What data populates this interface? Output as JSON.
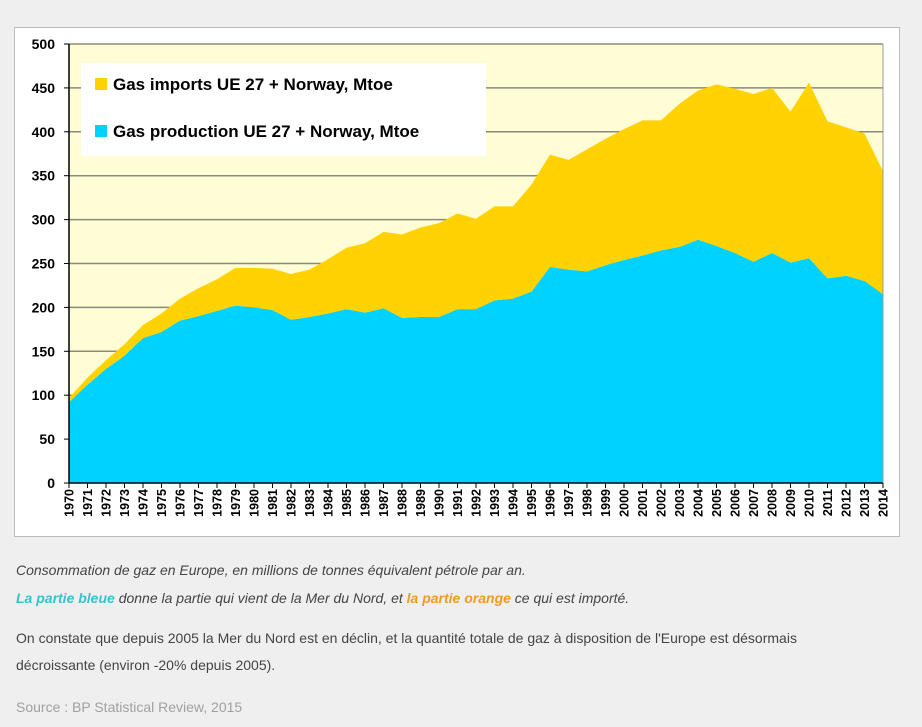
{
  "chart_data": {
    "type": "area",
    "stacked": true,
    "title": "",
    "xlabel": "",
    "ylabel": "",
    "ylim": [
      0,
      500
    ],
    "yticks": [
      0,
      50,
      100,
      150,
      200,
      250,
      300,
      350,
      400,
      450,
      500
    ],
    "grid": true,
    "legend_position": "top-left",
    "x": [
      1970,
      1971,
      1972,
      1973,
      1974,
      1975,
      1976,
      1977,
      1978,
      1979,
      1980,
      1981,
      1982,
      1983,
      1984,
      1985,
      1986,
      1987,
      1988,
      1989,
      1990,
      1991,
      1992,
      1993,
      1994,
      1995,
      1996,
      1997,
      1998,
      1999,
      2000,
      2001,
      2002,
      2003,
      2004,
      2005,
      2006,
      2007,
      2008,
      2009,
      2010,
      2011,
      2012,
      2013,
      2014
    ],
    "series": [
      {
        "name": "Gas production UE 27 + Norway, Mtoe",
        "color": "#00d2ff",
        "values": [
          92,
          112,
          130,
          145,
          165,
          172,
          185,
          190,
          196,
          202,
          200,
          197,
          186,
          189,
          193,
          198,
          194,
          199,
          188,
          189,
          189,
          198,
          198,
          208,
          210,
          218,
          246,
          243,
          241,
          248,
          254,
          259,
          265,
          269,
          277,
          270,
          262,
          252,
          262,
          251,
          256,
          233,
          236,
          230,
          215
        ]
      },
      {
        "name": "Gas imports UE 27 + Norway, Mtoe",
        "color": "#ffd200",
        "values": [
          5,
          8,
          10,
          13,
          15,
          21,
          25,
          32,
          36,
          43,
          45,
          47,
          52,
          54,
          62,
          70,
          79,
          87,
          95,
          102,
          107,
          109,
          103,
          107,
          105,
          122,
          128,
          125,
          139,
          144,
          149,
          154,
          148,
          163,
          170,
          184,
          187,
          191,
          188,
          172,
          200,
          179,
          169,
          168,
          140
        ]
      }
    ]
  },
  "caption": {
    "line1": "Consommation de gaz en Europe, en millions de tonnes équivalent pétrole par an.",
    "blue_part": "La partie bleue",
    "line2_mid": " donne la partie qui vient de la Mer du Nord, et ",
    "orange_part": "la partie orange",
    "line2_end": " ce qui est importé.",
    "para1": "On constate que depuis 2005 la Mer du Nord est en déclin, et la quantité totale de gaz à disposition de l'Europe est désormais",
    "para2": "décroissante (environ -20% depuis 2005).",
    "source": "Source : BP Statistical Review, 2015"
  }
}
